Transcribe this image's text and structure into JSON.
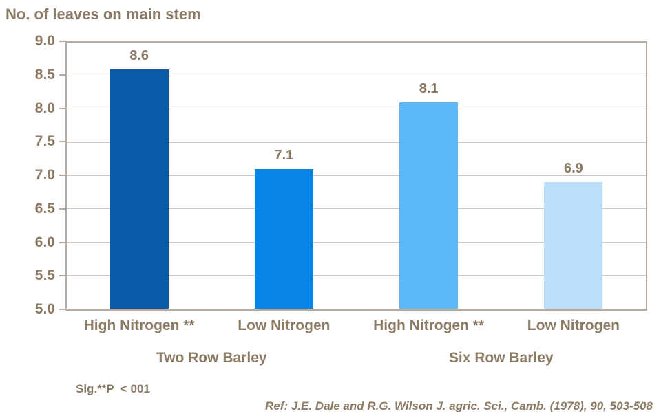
{
  "title": "No. of leaves on main stem",
  "footnote": "Sig.**P  < 001",
  "reference": "Ref: J.E. Dale and R.G. Wilson J. agric. Sci., Camb. (1978), 90, 503-508",
  "colors": {
    "text": "#8B7A64",
    "axis": "#B6ABA0",
    "gridline": "#CFC6BC",
    "bars": [
      "#0A5CA8",
      "#0884E8",
      "#5CB9F9",
      "#BBDFFB"
    ]
  },
  "chart_data": {
    "type": "bar",
    "title": "No. of leaves on main stem",
    "xlabel": "",
    "ylabel": "No. of leaves on main stem",
    "categories": [
      "High Nitrogen **",
      "Low Nitrogen",
      "High Nitrogen **",
      "Low Nitrogen"
    ],
    "values": [
      8.6,
      7.1,
      8.1,
      6.9
    ],
    "bar_labels": [
      "8.6",
      "7.1",
      "8.1",
      "6.9"
    ],
    "groups": [
      "Two Row Barley",
      "Six Row Barley"
    ],
    "ylim": [
      5.0,
      9.0
    ],
    "ytick_step": 0.5,
    "yticks": [
      "9.0",
      "8.5",
      "8.0",
      "7.5",
      "7.0",
      "6.5",
      "6.0",
      "5.5",
      "5.0"
    ],
    "grid": true,
    "legend": false,
    "annotations": [
      "Sig.**P  < 001",
      "Ref: J.E. Dale and R.G. Wilson J. agric. Sci., Camb. (1978), 90, 503-508"
    ]
  }
}
